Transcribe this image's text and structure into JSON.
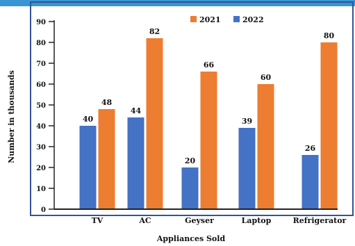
{
  "chart_data": {
    "type": "bar",
    "title": "",
    "xlabel": "Appliances Sold",
    "ylabel": "Number in thousands",
    "categories": [
      "TV",
      "AC",
      "Geyser",
      "Laptop",
      "Refrigerator"
    ],
    "series": [
      {
        "name": "2022",
        "color": "#4472C4",
        "values": [
          40,
          44,
          20,
          39,
          26
        ]
      },
      {
        "name": "2021",
        "color": "#ED7D31",
        "values": [
          48,
          82,
          66,
          60,
          80
        ]
      }
    ],
    "y_ticks": [
      {
        "label": "0",
        "value": 0
      },
      {
        "label": "10",
        "value": 10
      },
      {
        "label": "20",
        "value": 20
      },
      {
        "label": "30",
        "value": 30
      },
      {
        "label": "40",
        "value": 40
      },
      {
        "label": "50",
        "value": 50
      },
      {
        "label": "60",
        "value": 60
      },
      {
        "label": "70",
        "value": 70
      },
      {
        "label": "80",
        "value": 80
      },
      {
        "label": "90",
        "value": 90
      }
    ],
    "ylim": [
      0,
      90
    ],
    "grid": false,
    "legend": {
      "position": "top-right",
      "order": [
        "2021",
        "2022"
      ]
    },
    "frame_color": "#2F5597",
    "title_color": "#3A96D3"
  }
}
